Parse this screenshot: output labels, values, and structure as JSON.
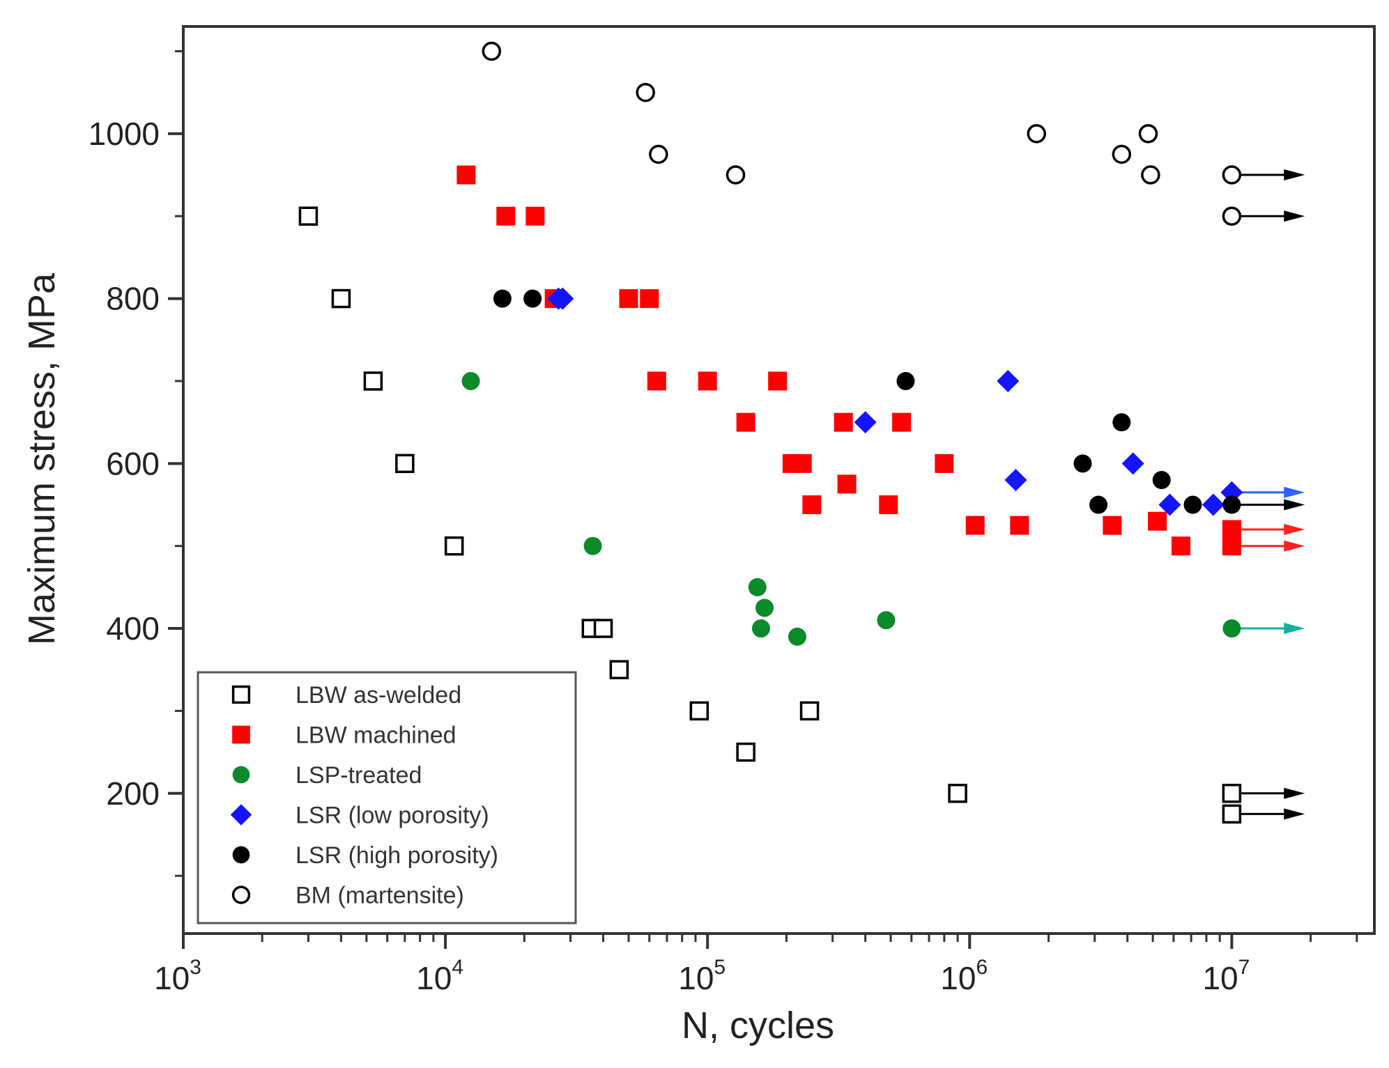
{
  "chart_data": {
    "type": "scatter",
    "title": "",
    "xlabel": "N, cycles",
    "ylabel": "Maximum stress, MPa",
    "xscale": "log",
    "xlim": [
      1000,
      35000000
    ],
    "ylim": [
      30,
      1130
    ],
    "x_ticks": [
      {
        "value": 1000,
        "base": "10",
        "exp": "3"
      },
      {
        "value": 10000,
        "base": "10",
        "exp": "4"
      },
      {
        "value": 100000,
        "base": "10",
        "exp": "5"
      },
      {
        "value": 1000000,
        "base": "10",
        "exp": "6"
      },
      {
        "value": 10000000,
        "base": "10",
        "exp": "7"
      }
    ],
    "y_ticks": [
      {
        "value": 200,
        "label": "200"
      },
      {
        "value": 400,
        "label": "400"
      },
      {
        "value": 600,
        "label": "600"
      },
      {
        "value": 800,
        "label": "800"
      },
      {
        "value": 1000,
        "label": "1000"
      }
    ],
    "legend_position": "bottom-left",
    "runout_to": 19000000,
    "series": [
      {
        "name": "LBW as-welded",
        "marker": "square-open",
        "color": "#000000",
        "points": [
          [
            3000,
            900
          ],
          [
            4000,
            800
          ],
          [
            5300,
            700
          ],
          [
            7000,
            600
          ],
          [
            10800,
            500
          ],
          [
            36000,
            400
          ],
          [
            40000,
            400
          ],
          [
            46000,
            350
          ],
          [
            93000,
            300
          ],
          [
            245000,
            300
          ],
          [
            140000,
            250
          ],
          [
            900000,
            200
          ]
        ],
        "runouts": [
          [
            10000000,
            200
          ],
          [
            10000000,
            175
          ]
        ]
      },
      {
        "name": "LBW machined",
        "marker": "square-filled",
        "color": "#ff0000",
        "points": [
          [
            12000,
            950
          ],
          [
            17000,
            900
          ],
          [
            22000,
            900
          ],
          [
            26000,
            800
          ],
          [
            50000,
            800
          ],
          [
            60000,
            800
          ],
          [
            64000,
            700
          ],
          [
            100000,
            700
          ],
          [
            185000,
            700
          ],
          [
            140000,
            650
          ],
          [
            330000,
            650
          ],
          [
            550000,
            650
          ],
          [
            210000,
            600
          ],
          [
            230000,
            600
          ],
          [
            800000,
            600
          ],
          [
            340000,
            575
          ],
          [
            250000,
            550
          ],
          [
            490000,
            550
          ],
          [
            1050000,
            525
          ],
          [
            1550000,
            525
          ],
          [
            3500000,
            525
          ],
          [
            5200000,
            530
          ],
          [
            6400000,
            500
          ]
        ],
        "runouts": [
          [
            10000000,
            520
          ],
          [
            10000000,
            500
          ]
        ]
      },
      {
        "name": "LSP-treated",
        "marker": "circle-filled",
        "color": "#0a8a2a",
        "points": [
          [
            12500,
            700
          ],
          [
            36500,
            500
          ],
          [
            155000,
            450
          ],
          [
            165000,
            425
          ],
          [
            160000,
            400
          ],
          [
            220000,
            390
          ],
          [
            480000,
            410
          ]
        ],
        "runouts": [
          [
            10000000,
            400
          ]
        ]
      },
      {
        "name": "LSR (low porosity)",
        "marker": "diamond-filled",
        "color": "#1414ff",
        "points": [
          [
            27000,
            800
          ],
          [
            28000,
            800
          ],
          [
            1400000,
            700
          ],
          [
            400000,
            650
          ],
          [
            4200000,
            600
          ],
          [
            1500000,
            580
          ],
          [
            5800000,
            550
          ],
          [
            8500000,
            550
          ]
        ],
        "runouts": [
          [
            10000000,
            565
          ]
        ]
      },
      {
        "name": "LSR (high porosity)",
        "marker": "circle-filled",
        "color": "#000000",
        "points": [
          [
            16500,
            800
          ],
          [
            21500,
            800
          ],
          [
            570000,
            700
          ],
          [
            3800000,
            650
          ],
          [
            2700000,
            600
          ],
          [
            5400000,
            580
          ],
          [
            3100000,
            550
          ],
          [
            7100000,
            550
          ]
        ],
        "runouts": [
          [
            10000000,
            550
          ]
        ]
      },
      {
        "name": "BM (martensite)",
        "marker": "circle-open",
        "color": "#000000",
        "points": [
          [
            15000,
            1100
          ],
          [
            58000,
            1050
          ],
          [
            65000,
            975
          ],
          [
            128000,
            950
          ],
          [
            1800000,
            1000
          ],
          [
            3800000,
            975
          ],
          [
            4800000,
            1000
          ],
          [
            4900000,
            950
          ]
        ],
        "runouts": [
          [
            10000000,
            950
          ],
          [
            10000000,
            900
          ]
        ]
      }
    ],
    "runout_arrow_colors": [
      "#000000",
      "#ff2020",
      "#10b0a0",
      "#3060ff",
      "#000000",
      "#000000"
    ]
  }
}
